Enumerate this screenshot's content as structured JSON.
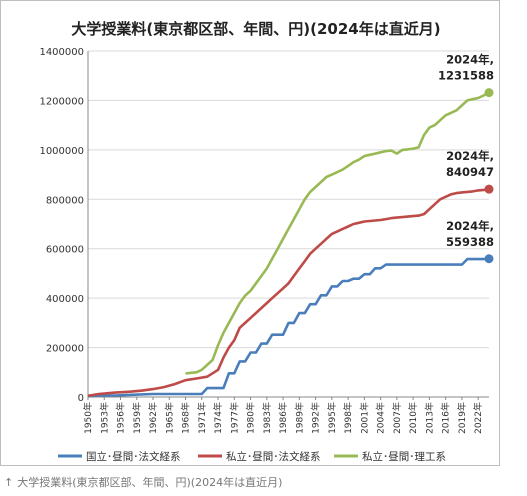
{
  "caption": {
    "arrow": "↑",
    "text": "大学授業料(東京都区部、年間、円)(2024年は直近月)"
  },
  "chart_data": {
    "type": "line",
    "title": "大学授業料(東京都区部、年間、円)(2024年は直近月)",
    "xlabel": "",
    "ylabel": "",
    "ylim": [
      0,
      1400000
    ],
    "yticks": [
      "0",
      "200000",
      "400000",
      "600000",
      "800000",
      "1000000",
      "1200000",
      "1400000"
    ],
    "xticks": [
      "1950年",
      "1953年",
      "1956年",
      "1959年",
      "1962年",
      "1965年",
      "1968年",
      "1971年",
      "1974年",
      "1977年",
      "1980年",
      "1983年",
      "1986年",
      "1989年",
      "1992年",
      "1995年",
      "1998年",
      "2001年",
      "2004年",
      "2007年",
      "2010年",
      "2013年",
      "2016年",
      "2019年",
      "2022年"
    ],
    "grid": true,
    "legend": "bottom",
    "series": [
      {
        "name": "国立･昼間･法文経系",
        "color": "#4a7ebb",
        "x": [
          1950,
          1952,
          1955,
          1958,
          1962,
          1965,
          1968,
          1971,
          1972,
          1975,
          1976,
          1977,
          1978,
          1979,
          1980,
          1981,
          1982,
          1983,
          1984,
          1985,
          1986,
          1987,
          1988,
          1989,
          1990,
          1991,
          1992,
          1993,
          1994,
          1995,
          1996,
          1997,
          1998,
          1999,
          2000,
          2001,
          2002,
          2003,
          2004,
          2005,
          2006,
          2007,
          2008,
          2009,
          2010,
          2011,
          2012,
          2013,
          2014,
          2015,
          2016,
          2017,
          2018,
          2019,
          2020,
          2021,
          2022,
          2023,
          2024
        ],
        "values": [
          3600,
          6000,
          6000,
          9000,
          12000,
          12000,
          12000,
          12000,
          36000,
          36000,
          96000,
          96000,
          144000,
          144000,
          180000,
          180000,
          216000,
          216000,
          252000,
          252000,
          252000,
          300000,
          300000,
          339600,
          339600,
          375600,
          375600,
          411600,
          411600,
          447600,
          447600,
          469200,
          469200,
          478800,
          478800,
          496800,
          496800,
          520800,
          520800,
          535800,
          535800,
          535800,
          535800,
          535800,
          535800,
          535800,
          535800,
          535800,
          535800,
          535800,
          535800,
          535800,
          535800,
          535800,
          558000,
          558000,
          558000,
          558000,
          559388
        ],
        "end_label": [
          "2024年,",
          "559388"
        ]
      },
      {
        "name": "私立･昼間･法文経系",
        "color": "#be4b48",
        "x": [
          1950,
          1952,
          1955,
          1958,
          1960,
          1962,
          1964,
          1966,
          1968,
          1970,
          1972,
          1974,
          1975,
          1976,
          1977,
          1978,
          1979,
          1980,
          1981,
          1982,
          1983,
          1984,
          1985,
          1986,
          1987,
          1988,
          1989,
          1990,
          1991,
          1992,
          1993,
          1994,
          1995,
          1996,
          1997,
          1998,
          1999,
          2000,
          2001,
          2002,
          2003,
          2004,
          2005,
          2006,
          2007,
          2008,
          2009,
          2010,
          2011,
          2012,
          2013,
          2014,
          2015,
          2016,
          2017,
          2018,
          2019,
          2020,
          2021,
          2022,
          2023,
          2024
        ],
        "values": [
          5000,
          12000,
          18000,
          22000,
          26000,
          32000,
          40000,
          52000,
          68000,
          75000,
          82000,
          110000,
          160000,
          200000,
          230000,
          280000,
          300000,
          320000,
          340000,
          360000,
          380000,
          400000,
          420000,
          440000,
          460000,
          490000,
          520000,
          550000,
          580000,
          600000,
          620000,
          640000,
          660000,
          670000,
          680000,
          690000,
          700000,
          705000,
          710000,
          712000,
          714000,
          716000,
          720000,
          724000,
          726000,
          728000,
          730000,
          732000,
          734000,
          740000,
          760000,
          780000,
          800000,
          810000,
          820000,
          825000,
          828000,
          830000,
          832000,
          836000,
          838000,
          840947
        ],
        "end_label": [
          "2024年,",
          "840947"
        ]
      },
      {
        "name": "私立･昼間･理工系",
        "color": "#98b954",
        "x": [
          1968,
          1969,
          1970,
          1971,
          1972,
          1973,
          1974,
          1975,
          1976,
          1977,
          1978,
          1979,
          1980,
          1981,
          1982,
          1983,
          1984,
          1985,
          1986,
          1987,
          1988,
          1989,
          1990,
          1991,
          1992,
          1993,
          1994,
          1995,
          1996,
          1997,
          1998,
          1999,
          2000,
          2001,
          2002,
          2003,
          2004,
          2005,
          2006,
          2007,
          2008,
          2009,
          2010,
          2011,
          2012,
          2013,
          2014,
          2015,
          2016,
          2017,
          2018,
          2019,
          2020,
          2021,
          2022,
          2023,
          2024
        ],
        "values": [
          95000,
          98000,
          100000,
          110000,
          130000,
          150000,
          210000,
          260000,
          300000,
          340000,
          380000,
          410000,
          430000,
          460000,
          490000,
          520000,
          560000,
          600000,
          640000,
          680000,
          720000,
          760000,
          800000,
          830000,
          850000,
          870000,
          890000,
          900000,
          910000,
          920000,
          935000,
          950000,
          960000,
          975000,
          980000,
          985000,
          990000,
          995000,
          997000,
          985000,
          1000000,
          1002000,
          1005000,
          1010000,
          1060000,
          1090000,
          1100000,
          1120000,
          1140000,
          1150000,
          1160000,
          1180000,
          1200000,
          1205000,
          1210000,
          1220000,
          1231588
        ],
        "end_label": [
          "2024年,",
          "1231588"
        ]
      }
    ]
  }
}
